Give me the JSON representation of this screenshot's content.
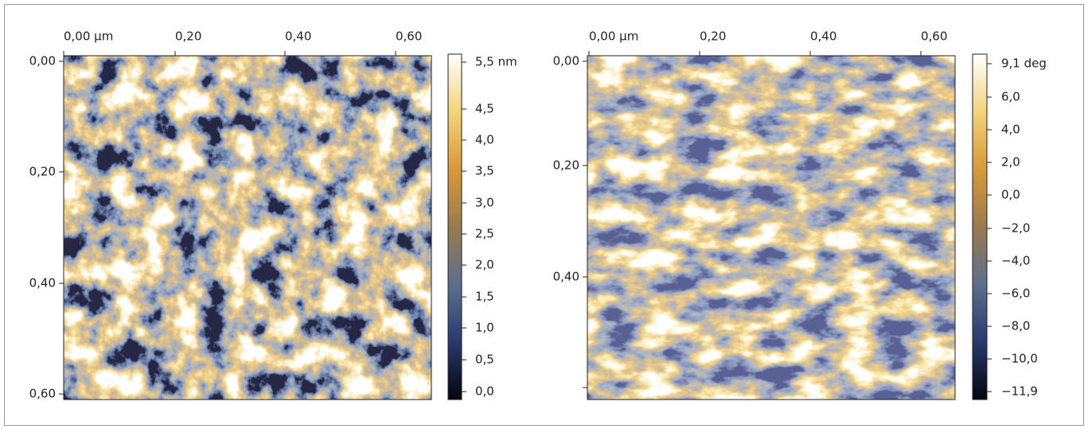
{
  "panels": [
    {
      "x_ticks": [
        "0,00 µm",
        "0,20",
        "0,40",
        "0,60"
      ],
      "y_ticks": [
        "0,00",
        "0,20",
        "0,40",
        "0,60"
      ],
      "colorbar_ticks": [
        "5,5 nm",
        "4,5",
        "4,0",
        "3,5",
        "3,0",
        "2,5",
        "2,0",
        "1,5",
        "1,0",
        "0,5",
        "0,0"
      ]
    },
    {
      "x_ticks": [
        "0,00 µm",
        "0,20",
        "0,40",
        "0,60"
      ],
      "y_ticks": [
        "0,00",
        "0,20",
        "0,40"
      ],
      "colorbar_ticks": [
        "9,1 deg",
        "6,0",
        "4,0",
        "2,0",
        "0,0",
        "−2,0",
        "−4,0",
        "−6,0",
        "−8,0",
        "−10,0",
        "−11,9"
      ]
    }
  ]
}
